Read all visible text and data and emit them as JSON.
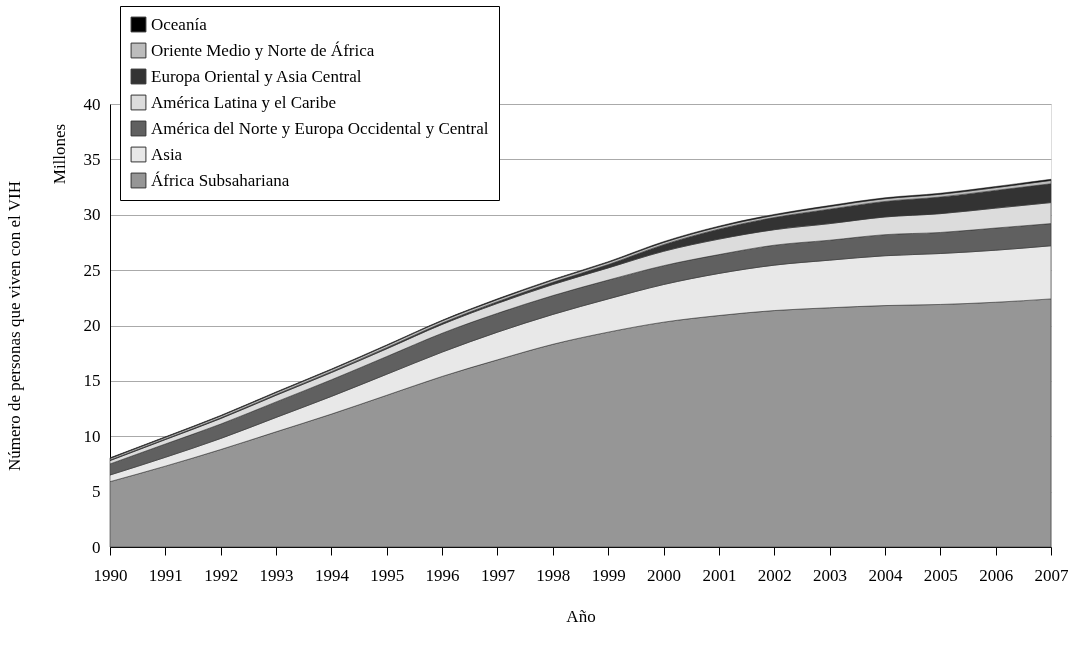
{
  "chart_data": {
    "type": "area",
    "stacked": true,
    "xlabel": "Año",
    "ylabel": "Número de personas que viven con el VIH",
    "annotations": [
      "Millones"
    ],
    "x": [
      1990,
      1991,
      1992,
      1993,
      1994,
      1995,
      1996,
      1997,
      1998,
      1999,
      2000,
      2001,
      2002,
      2003,
      2004,
      2005,
      2006,
      2007
    ],
    "xlim": [
      1990,
      2007
    ],
    "xticks": [
      1990,
      1991,
      1992,
      1993,
      1994,
      1995,
      1996,
      1997,
      1998,
      1999,
      2000,
      2001,
      2002,
      2003,
      2004,
      2005,
      2006,
      2007
    ],
    "ylim": [
      0,
      40
    ],
    "yticks": [
      0,
      5,
      10,
      15,
      20,
      25,
      30,
      35,
      40
    ],
    "grid": "y",
    "legend": "top left",
    "series": [
      {
        "name": "África Subsahariana",
        "color": "#969696",
        "values": [
          5.9,
          7.3,
          8.8,
          10.4,
          12.0,
          13.7,
          15.4,
          16.9,
          18.3,
          19.4,
          20.3,
          20.9,
          21.35,
          21.6,
          21.8,
          21.9,
          22.1,
          22.4
        ]
      },
      {
        "name": "Asia",
        "color": "#e8e8e8",
        "values": [
          0.6,
          0.8,
          1.0,
          1.3,
          1.6,
          1.9,
          2.2,
          2.5,
          2.7,
          3.0,
          3.4,
          3.8,
          4.1,
          4.3,
          4.5,
          4.6,
          4.7,
          4.8
        ]
      },
      {
        "name": "América del Norte y Europa Occidental y Central",
        "color": "#606060",
        "values": [
          1.0,
          1.2,
          1.3,
          1.4,
          1.5,
          1.6,
          1.7,
          1.7,
          1.7,
          1.7,
          1.7,
          1.7,
          1.8,
          1.8,
          1.9,
          1.9,
          2.0,
          2.0
        ]
      },
      {
        "name": "América Latina y el Caribe",
        "color": "#dcdcdc",
        "values": [
          0.3,
          0.4,
          0.5,
          0.6,
          0.65,
          0.7,
          0.8,
          0.9,
          1.0,
          1.1,
          1.3,
          1.4,
          1.4,
          1.5,
          1.6,
          1.7,
          1.8,
          1.9
        ]
      },
      {
        "name": "Europa Oriental y Asia Central",
        "color": "#333333",
        "values": [
          0.05,
          0.05,
          0.06,
          0.07,
          0.08,
          0.1,
          0.12,
          0.15,
          0.2,
          0.3,
          0.6,
          0.9,
          1.1,
          1.3,
          1.4,
          1.5,
          1.6,
          1.7
        ]
      },
      {
        "name": "Oriente Medio y Norte de África",
        "color": "#bcbcbc",
        "values": [
          0.15,
          0.15,
          0.17,
          0.18,
          0.19,
          0.2,
          0.2,
          0.2,
          0.2,
          0.2,
          0.2,
          0.2,
          0.2,
          0.25,
          0.25,
          0.25,
          0.25,
          0.3
        ]
      },
      {
        "name": "Oceanía",
        "color": "#000000",
        "values": [
          0.05,
          0.05,
          0.05,
          0.05,
          0.05,
          0.05,
          0.05,
          0.06,
          0.06,
          0.06,
          0.07,
          0.07,
          0.08,
          0.08,
          0.08,
          0.09,
          0.1,
          0.1
        ]
      }
    ]
  }
}
